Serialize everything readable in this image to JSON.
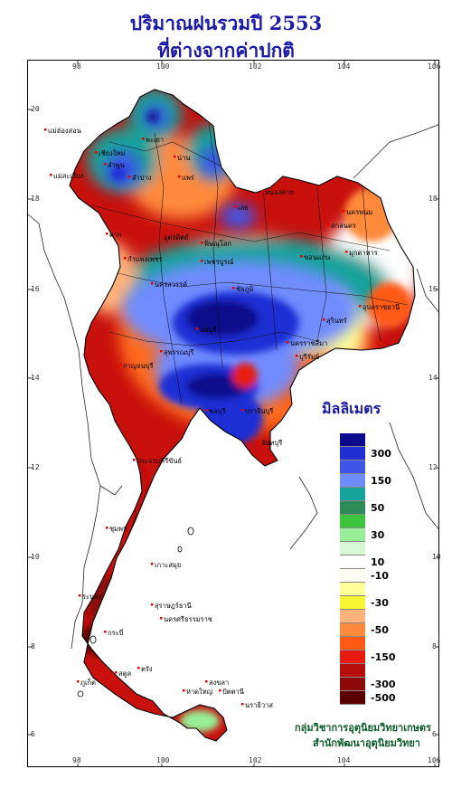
{
  "title": "ปริมาณฝนรวมปี  2553",
  "subtitle": "ที่ต่างจากค่าปกติ",
  "axes": {
    "top_ticks": [
      "98",
      "100",
      "102",
      "104",
      "106"
    ],
    "bottom_ticks": [
      "98",
      "100",
      "102",
      "104",
      "106"
    ],
    "left_ticks": [
      "20",
      "18",
      "16",
      "14",
      "12",
      "10",
      "8",
      "6"
    ],
    "right_ticks": [
      "18",
      "16",
      "14",
      "12",
      "10",
      "8",
      "6"
    ]
  },
  "legend": {
    "title": "มิลลิเมตร",
    "bins": [
      {
        "color": "#0a0a8c",
        "label": ""
      },
      {
        "color": "#1f2fd4",
        "label": "300"
      },
      {
        "color": "#3d56e8",
        "label": ""
      },
      {
        "color": "#6f8cff",
        "label": "150"
      },
      {
        "color": "#15a39c",
        "label": ""
      },
      {
        "color": "#2e8b57",
        "label": "50"
      },
      {
        "color": "#3cc43c",
        "label": ""
      },
      {
        "color": "#98ef98",
        "label": "30"
      },
      {
        "color": "#d6f8d6",
        "label": ""
      },
      {
        "color": "#ffffff",
        "label": "10"
      },
      {
        "color": "#fbfbf0",
        "label": "-10"
      },
      {
        "color": "#ffff99",
        "label": ""
      },
      {
        "color": "#f5f533",
        "label": "-30"
      },
      {
        "color": "#ffb27a",
        "label": ""
      },
      {
        "color": "#ff8a3a",
        "label": "-50"
      },
      {
        "color": "#ff5a14",
        "label": ""
      },
      {
        "color": "#e61a0f",
        "label": "-150"
      },
      {
        "color": "#b80d0d",
        "label": ""
      },
      {
        "color": "#8c0a0a",
        "label": "-300"
      },
      {
        "color": "#5a0000",
        "label": "-500"
      }
    ]
  },
  "places": [
    "แม่ฮ่องสอน",
    "เชียงใหม่",
    "ลำพูน",
    "ลำปาง",
    "แพร่",
    "น่าน",
    "พะเยา",
    "แม่สะเรียง",
    "ตาก",
    "เลย",
    "หนองคาย",
    "นครพนม",
    "สกลนคร",
    "มุกดาหาร",
    "อุบลราชธานี",
    "สุรินทร์",
    "ชัยภูมิ",
    "ขอนแก่น",
    "เพชรบูรณ์",
    "พิษณุโลก",
    "นครสวรรค์",
    "ลพบุรี",
    "สุพรรณบุรี",
    "กาญจนบุรี",
    "บุรีรัมย์",
    "นครราชสีมา",
    "ปราจีนบุรี",
    "ชลบุรี",
    "จันทบุรี",
    "ประจวบคีรีขันธ์",
    "ชุมพร",
    "ระนอง",
    "เกาะสมุย",
    "สุราษฎร์ธานี",
    "นครศรีธรรมราช",
    "กระบี่",
    "ภูเก็ต",
    "ตรัง",
    "สงขลา",
    "หาดใหญ่",
    "ปัตตานี",
    "นราธิวาส",
    "สตูล",
    "กำแพงเพชร",
    "อุตรดิตถ์"
  ],
  "credit_line1": "กลุ่มวิชาการอุตุนิยมวิทยาเกษตร",
  "credit_line2": "สำนักพัฒนาอุตุนิยมวิทยา"
}
